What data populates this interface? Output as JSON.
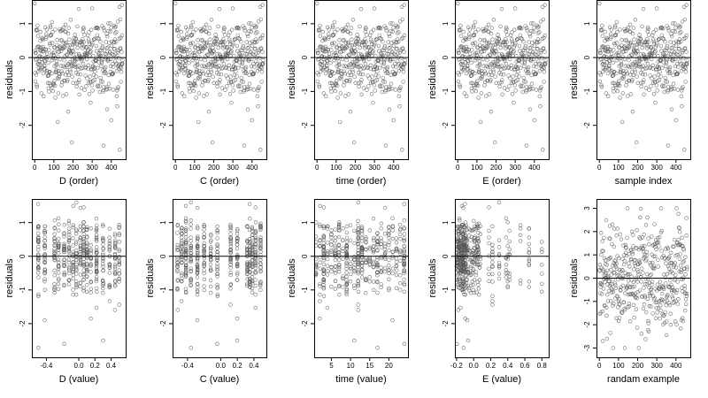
{
  "chart_data": [
    {
      "type": "scatter",
      "xlabel": "D (order)",
      "ylabel": "residuals",
      "xlim": [
        -15,
        475
      ],
      "ylim": [
        -3.0,
        1.7
      ],
      "xticks": [
        "0",
        "100",
        "200",
        "300",
        "400"
      ],
      "yticks": [
        "-2",
        "-1",
        "0",
        "1"
      ],
      "zero_line": true,
      "n_points": 460,
      "x_mode": "order",
      "point_color": "#555555"
    },
    {
      "type": "scatter",
      "xlabel": "C (order)",
      "ylabel": "residuals",
      "xlim": [
        -15,
        475
      ],
      "ylim": [
        -3.0,
        1.7
      ],
      "xticks": [
        "0",
        "100",
        "200",
        "300",
        "400"
      ],
      "yticks": [
        "-2",
        "-1",
        "0",
        "1"
      ],
      "zero_line": true,
      "n_points": 460,
      "x_mode": "order",
      "point_color": "#555555"
    },
    {
      "type": "scatter",
      "xlabel": "time (order)",
      "ylabel": "residuals",
      "xlim": [
        -15,
        475
      ],
      "ylim": [
        -3.0,
        1.7
      ],
      "xticks": [
        "0",
        "100",
        "200",
        "300",
        "400"
      ],
      "yticks": [
        "-2",
        "-1",
        "0",
        "1"
      ],
      "zero_line": true,
      "n_points": 460,
      "x_mode": "order",
      "point_color": "#555555"
    },
    {
      "type": "scatter",
      "xlabel": "E (order)",
      "ylabel": "residuals",
      "xlim": [
        -15,
        475
      ],
      "ylim": [
        -3.0,
        1.7
      ],
      "xticks": [
        "0",
        "100",
        "200",
        "300",
        "400"
      ],
      "yticks": [
        "-2",
        "-1",
        "0",
        "1"
      ],
      "zero_line": true,
      "n_points": 460,
      "x_mode": "order",
      "point_color": "#555555"
    },
    {
      "type": "scatter",
      "xlabel": "sample index",
      "ylabel": "residuals",
      "xlim": [
        -15,
        475
      ],
      "ylim": [
        -3.0,
        1.7
      ],
      "xticks": [
        "0",
        "100",
        "200",
        "300",
        "400"
      ],
      "yticks": [
        "-2",
        "-1",
        "0",
        "1"
      ],
      "zero_line": true,
      "n_points": 460,
      "x_mode": "order",
      "point_color": "#555555"
    },
    {
      "type": "scatter",
      "xlabel": "D (value)",
      "ylabel": "residuals",
      "xlim": [
        -0.58,
        0.58
      ],
      "ylim": [
        -3.0,
        1.7
      ],
      "xticks": [
        "-0.4",
        "0.0",
        "0.2",
        "0.4"
      ],
      "yticks": [
        "-2",
        "-1",
        "0",
        "1"
      ],
      "zero_line": true,
      "n_points": 460,
      "x_mode": "D",
      "point_color": "#555555"
    },
    {
      "type": "scatter",
      "xlabel": "C (value)",
      "ylabel": "residuals",
      "xlim": [
        -0.58,
        0.55
      ],
      "ylim": [
        -3.0,
        1.7
      ],
      "xticks": [
        "-0.4",
        "0.0",
        "0.2",
        "0.4"
      ],
      "yticks": [
        "-2",
        "-1",
        "0",
        "1"
      ],
      "zero_line": true,
      "n_points": 460,
      "x_mode": "C",
      "point_color": "#555555"
    },
    {
      "type": "scatter",
      "xlabel": "time (value)",
      "ylabel": "residuals",
      "xlim": [
        0.5,
        25.0
      ],
      "ylim": [
        -3.0,
        1.7
      ],
      "xticks": [
        "5",
        "10",
        "15",
        "20"
      ],
      "yticks": [
        "-2",
        "-1",
        "0",
        "1"
      ],
      "zero_line": true,
      "n_points": 460,
      "x_mode": "time",
      "point_color": "#555555"
    },
    {
      "type": "scatter",
      "xlabel": "E (value)",
      "ylabel": "residuals",
      "xlim": [
        -0.22,
        0.88
      ],
      "ylim": [
        -3.0,
        1.7
      ],
      "xticks": [
        "-0.2",
        "0.0",
        "0.2",
        "0.4",
        "0.6",
        "0.8"
      ],
      "yticks": [
        "-2",
        "-1",
        "0",
        "1"
      ],
      "zero_line": true,
      "n_points": 460,
      "x_mode": "E",
      "point_color": "#555555"
    },
    {
      "type": "scatter",
      "xlabel": "randam example",
      "ylabel": "residuals",
      "xlim": [
        -15,
        475
      ],
      "ylim": [
        -3.4,
        3.4
      ],
      "xticks": [
        "0",
        "100",
        "200",
        "300",
        "400"
      ],
      "yticks": [
        "-3",
        "-2",
        "-1",
        "0",
        "1",
        "2",
        "3"
      ],
      "zero_line": true,
      "n_points": 460,
      "x_mode": "order",
      "point_color": "#555555"
    }
  ]
}
